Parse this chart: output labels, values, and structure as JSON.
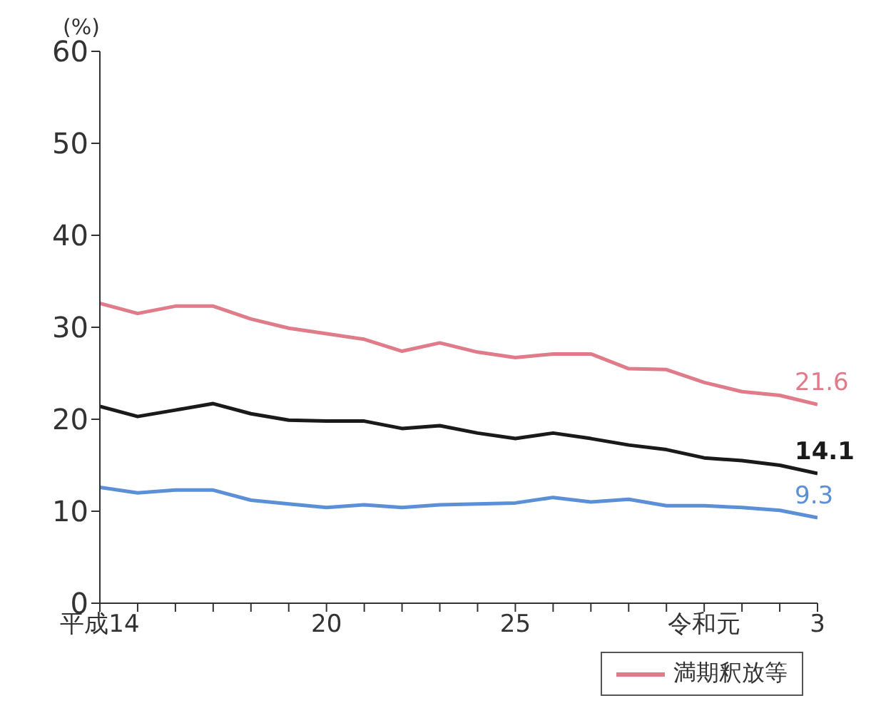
{
  "chart_data": {
    "type": "line",
    "ylabel": "(%)",
    "categories": [
      "平成14",
      null,
      null,
      null,
      null,
      null,
      "20",
      null,
      null,
      null,
      null,
      "25",
      null,
      null,
      null,
      null,
      "令和元",
      null,
      null,
      "3"
    ],
    "ylim": [
      0,
      60
    ],
    "yticks": [
      0,
      10,
      20,
      30,
      40,
      50,
      60
    ],
    "legend": "bottom right",
    "marker": "none",
    "line_style": "solid",
    "series": [
      {
        "name": "満期釈放等",
        "color": "#e07b8a",
        "values": [
          32.6,
          31.5,
          32.3,
          32.3,
          30.9,
          29.9,
          29.3,
          28.7,
          27.4,
          28.3,
          27.3,
          26.7,
          27.1,
          27.1,
          25.5,
          25.4,
          24.0,
          23.0,
          22.6,
          21.6
        ],
        "value_labels": [
          null,
          null,
          null,
          null,
          null,
          null,
          null,
          null,
          null,
          null,
          null,
          null,
          null,
          null,
          null,
          null,
          null,
          null,
          null,
          "21.6"
        ]
      },
      {
        "color": "#1a1a1a",
        "values": [
          21.4,
          20.3,
          21.0,
          21.7,
          20.6,
          19.9,
          19.8,
          19.8,
          19.0,
          19.3,
          18.5,
          17.9,
          18.5,
          17.9,
          17.2,
          16.7,
          15.8,
          15.5,
          15.0,
          14.1
        ],
        "value_labels": [
          null,
          null,
          null,
          null,
          null,
          null,
          null,
          null,
          null,
          null,
          null,
          null,
          null,
          null,
          null,
          null,
          null,
          null,
          null,
          "14.1"
        ]
      },
      {
        "color": "#5b8fd6",
        "values": [
          12.6,
          12.0,
          12.3,
          12.3,
          11.2,
          10.8,
          10.4,
          10.7,
          10.4,
          10.7,
          10.8,
          10.9,
          11.5,
          11.0,
          11.3,
          10.6,
          10.6,
          10.4,
          10.1,
          9.3
        ],
        "value_labels": [
          null,
          null,
          null,
          null,
          null,
          null,
          null,
          null,
          null,
          null,
          null,
          null,
          null,
          null,
          null,
          null,
          null,
          null,
          null,
          "9.3"
        ]
      }
    ]
  }
}
